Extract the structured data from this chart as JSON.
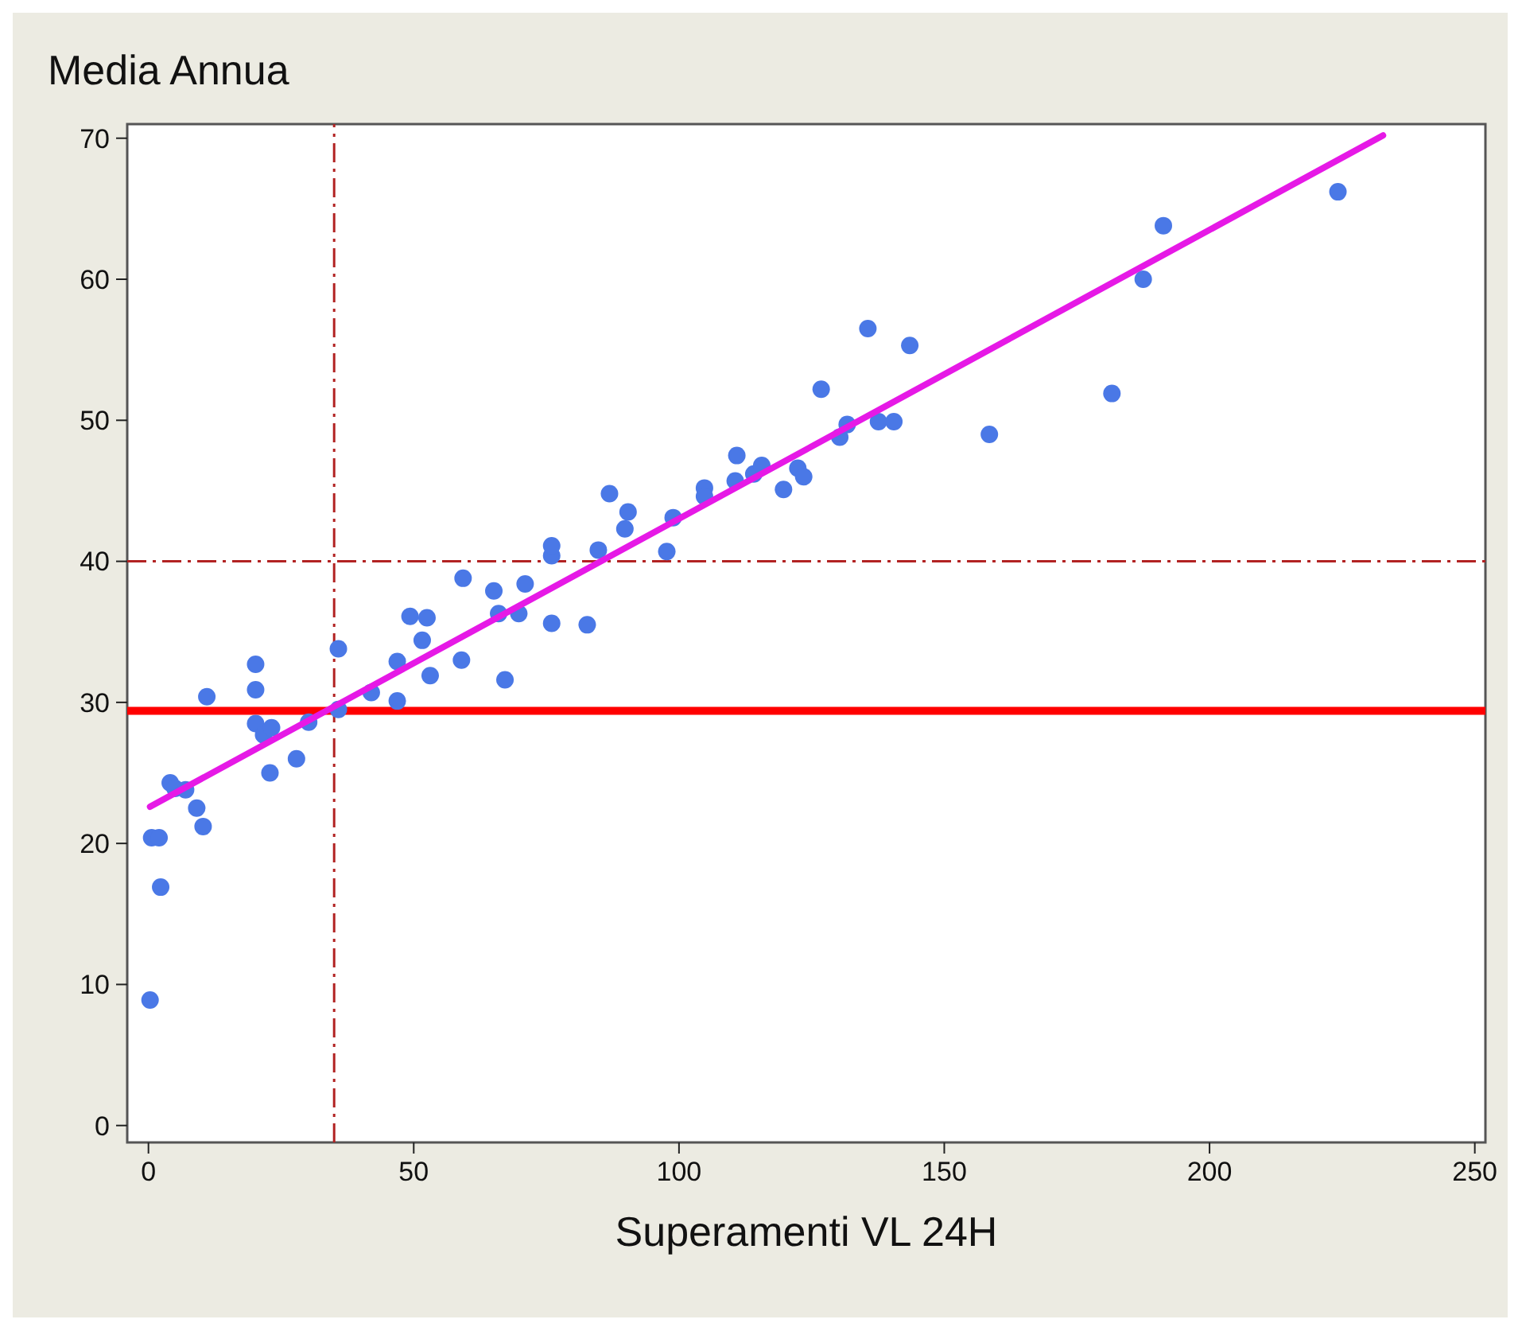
{
  "chart_data": {
    "type": "scatter",
    "ylabel": "Media Annua",
    "xlabel": "Superamenti VL 24H",
    "xlim": [
      -4,
      252
    ],
    "ylim": [
      -1.2,
      71
    ],
    "xticks": [
      0,
      50,
      100,
      150,
      200,
      250
    ],
    "yticks": [
      0,
      10,
      20,
      30,
      40,
      50,
      60,
      70
    ],
    "grid": false,
    "series": [
      {
        "marker": "circle",
        "color": "#4a78e6",
        "x": [
          0.3,
          0.6,
          2,
          2.3,
          4.1,
          5,
          7,
          9.1,
          10.3,
          11,
          20.2,
          20.2,
          20.2,
          21.7,
          23.2,
          22.9,
          27.9,
          30.2,
          35.8,
          35.8,
          42,
          46.9,
          46.9,
          49.3,
          52.5,
          51.6,
          53.1,
          59,
          59.3,
          65.1,
          66,
          67.2,
          69.8,
          71,
          76,
          76,
          76,
          82.7,
          84.8,
          86.9,
          89.8,
          90.4,
          97.7,
          98.9,
          104.8,
          104.8,
          110.9,
          110.6,
          114.1,
          115.6,
          119.7,
          122.4,
          123.5,
          126.8,
          130.3,
          131.7,
          137.6,
          140.5,
          135.6,
          143.5,
          158.5,
          181.6,
          187.5,
          191.3,
          224.2
        ],
        "values": [
          8.9,
          20.4,
          20.4,
          16.9,
          24.3,
          23.9,
          23.8,
          22.5,
          21.2,
          30.4,
          32.7,
          30.9,
          28.5,
          27.7,
          28.2,
          25,
          26,
          28.6,
          33.8,
          29.5,
          30.7,
          30.1,
          32.9,
          36.1,
          36,
          34.4,
          31.9,
          33,
          38.8,
          37.9,
          36.3,
          31.6,
          36.3,
          38.4,
          35.6,
          40.4,
          41.1,
          35.5,
          40.8,
          44.8,
          42.3,
          43.5,
          40.7,
          43.1,
          45.2,
          44.6,
          47.5,
          45.7,
          46.2,
          46.8,
          45.1,
          46.6,
          46,
          52.2,
          48.8,
          49.7,
          49.9,
          49.9,
          56.5,
          55.3,
          49,
          51.9,
          60,
          63.8,
          66.2
        ]
      },
      {
        "type": "line",
        "color": "#e619e6",
        "x": [
          0.3,
          232.7
        ],
        "values": [
          22.6,
          70.2
        ]
      }
    ],
    "ref_lines": [
      {
        "axis": "x",
        "value": 35,
        "color": "#b22222",
        "line_style": "dashed"
      },
      {
        "axis": "y",
        "value": 40,
        "color": "#b22222",
        "line_style": "dashed"
      },
      {
        "axis": "y",
        "value": 29.4,
        "color": "#ff0000",
        "line_style": "solid"
      }
    ]
  }
}
